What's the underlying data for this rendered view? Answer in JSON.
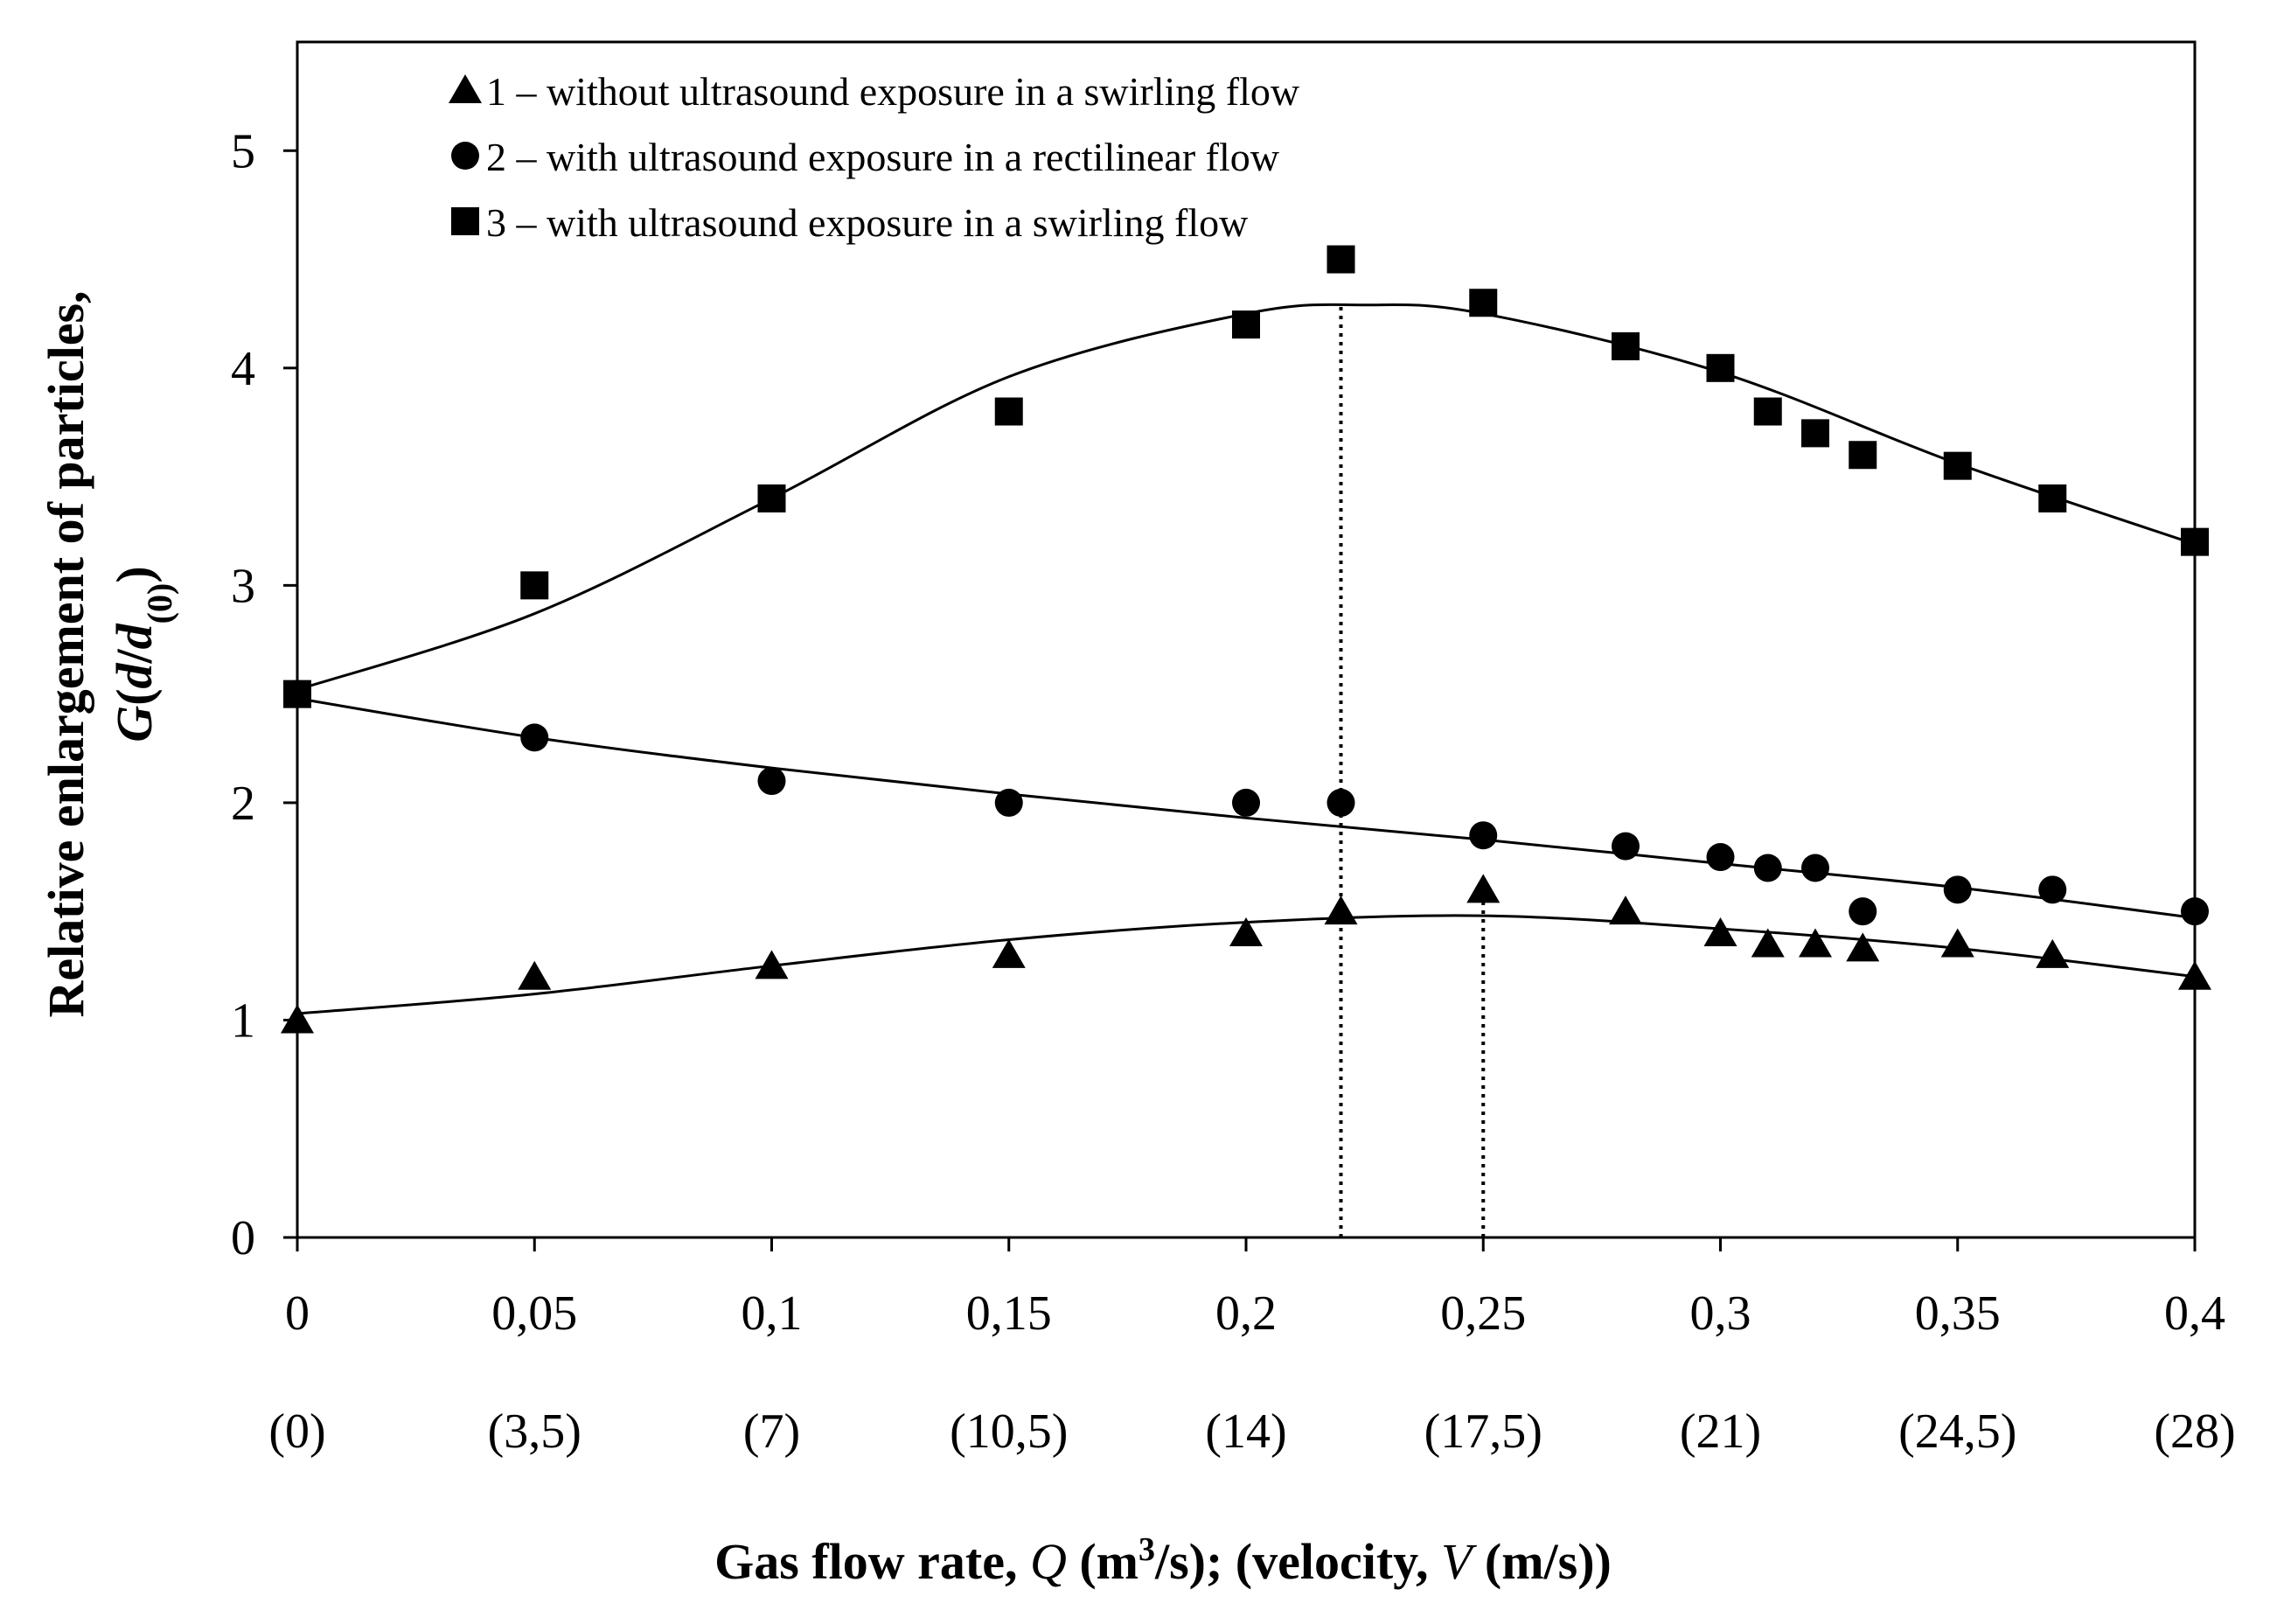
{
  "chart_data": {
    "type": "scatter",
    "title": "",
    "xlabel_parts": {
      "prefix": "Gas flow rate, ",
      "q_symbol": "Q",
      "unit_open": " (m",
      "unit_exp": "3",
      "unit_close": "/s); (velocity, ",
      "v_symbol": "V",
      "v_unit": " (m/s))"
    },
    "ylabel_line1": "Relative enlargement of particles,",
    "ylabel_parts": {
      "g": "G",
      "open": "(",
      "d": "d",
      "slash": "/",
      "d0": "d",
      "sub": "(0)",
      "close": ")"
    },
    "x_ticks": [
      "0",
      "0,05",
      "0,1",
      "0,15",
      "0,2",
      "0,25",
      "0,3",
      "0,35",
      "0,4"
    ],
    "x_tick_values": [
      0,
      0.05,
      0.1,
      0.15,
      0.2,
      0.25,
      0.3,
      0.35,
      0.4
    ],
    "velocity_ticks": [
      "(0)",
      "(3,5)",
      "(7)",
      "(10,5)",
      "(14)",
      "(17,5)",
      "(21)",
      "(24,5)",
      "(28)"
    ],
    "y_ticks": [
      "0",
      "1",
      "2",
      "3",
      "4",
      "5"
    ],
    "y_tick_values": [
      0,
      1,
      2,
      3,
      4,
      5
    ],
    "xlim": [
      0,
      0.4
    ],
    "ylim": [
      0,
      5.5
    ],
    "grid": false,
    "legend_position": "top-left",
    "series": [
      {
        "name": "1 – without ultrasound exposure in a swirling flow",
        "marker": "triangle",
        "x": [
          0,
          0.05,
          0.1,
          0.15,
          0.2,
          0.22,
          0.25,
          0.28,
          0.3,
          0.31,
          0.32,
          0.33,
          0.35,
          0.37,
          0.4
        ],
        "y": [
          1.0,
          1.2,
          1.25,
          1.3,
          1.4,
          1.5,
          1.6,
          1.5,
          1.4,
          1.35,
          1.35,
          1.33,
          1.35,
          1.3,
          1.2
        ],
        "fit_x": [
          0,
          0.05,
          0.1,
          0.15,
          0.2,
          0.25,
          0.3,
          0.35,
          0.4
        ],
        "fit_y": [
          1.03,
          1.12,
          1.25,
          1.37,
          1.45,
          1.48,
          1.42,
          1.33,
          1.2
        ]
      },
      {
        "name": "2 – with ultrasound exposure in a rectilinear flow",
        "marker": "circle",
        "x": [
          0,
          0.05,
          0.1,
          0.15,
          0.2,
          0.22,
          0.25,
          0.28,
          0.3,
          0.31,
          0.32,
          0.33,
          0.35,
          0.37,
          0.4
        ],
        "y": [
          2.5,
          2.3,
          2.1,
          2.0,
          2.0,
          2.0,
          1.85,
          1.8,
          1.75,
          1.7,
          1.7,
          1.5,
          1.6,
          1.6,
          1.5
        ],
        "fit_x": [
          0,
          0.05,
          0.1,
          0.15,
          0.2,
          0.25,
          0.3,
          0.35,
          0.4
        ],
        "fit_y": [
          2.48,
          2.3,
          2.16,
          2.04,
          1.93,
          1.83,
          1.72,
          1.61,
          1.47
        ]
      },
      {
        "name": "3 – with ultrasound exposure in a swirling flow",
        "marker": "square",
        "x": [
          0,
          0.05,
          0.1,
          0.15,
          0.2,
          0.22,
          0.25,
          0.28,
          0.3,
          0.31,
          0.32,
          0.33,
          0.35,
          0.37,
          0.4
        ],
        "y": [
          2.5,
          3.0,
          3.4,
          3.8,
          4.2,
          4.5,
          4.3,
          4.1,
          4.0,
          3.8,
          3.7,
          3.6,
          3.55,
          3.4,
          3.2
        ],
        "fit_x": [
          0,
          0.05,
          0.1,
          0.15,
          0.2,
          0.225,
          0.25,
          0.3,
          0.35,
          0.4
        ],
        "fit_y": [
          2.52,
          2.87,
          3.4,
          3.96,
          4.25,
          4.29,
          4.25,
          3.98,
          3.56,
          3.19
        ]
      }
    ],
    "reference_lines": [
      {
        "x": 0.22,
        "y_from": 0,
        "y_to": 4.29,
        "style": "dotted"
      },
      {
        "x": 0.25,
        "y_from": 0,
        "y_to": 1.6,
        "style": "dotted"
      }
    ]
  }
}
